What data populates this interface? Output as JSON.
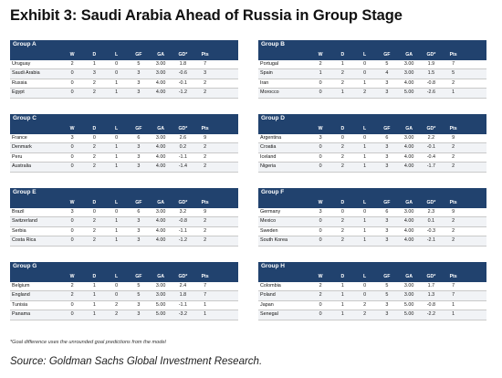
{
  "title": "Exhibit 3:  Saudi Arabia Ahead of Russia in Group Stage",
  "columns": [
    "W",
    "D",
    "L",
    "GF",
    "GA",
    "GD*",
    "Pts"
  ],
  "groups": [
    {
      "name": "Group A",
      "rows": [
        {
          "team": "Uruguay",
          "W": "2",
          "D": "1",
          "L": "0",
          "GF": "5",
          "GA": "3.00",
          "GD": "1.8",
          "Pts": "7"
        },
        {
          "team": "Saudi Arabia",
          "W": "0",
          "D": "3",
          "L": "0",
          "GF": "3",
          "GA": "3.00",
          "GD": "-0.6",
          "Pts": "3"
        },
        {
          "team": "Russia",
          "W": "0",
          "D": "2",
          "L": "1",
          "GF": "3",
          "GA": "4.00",
          "GD": "-0.1",
          "Pts": "2"
        },
        {
          "team": "Egypt",
          "W": "0",
          "D": "2",
          "L": "1",
          "GF": "3",
          "GA": "4.00",
          "GD": "-1.2",
          "Pts": "2"
        }
      ]
    },
    {
      "name": "Group B",
      "rows": [
        {
          "team": "Portugal",
          "W": "2",
          "D": "1",
          "L": "0",
          "GF": "5",
          "GA": "3.00",
          "GD": "1.9",
          "Pts": "7"
        },
        {
          "team": "Spain",
          "W": "1",
          "D": "2",
          "L": "0",
          "GF": "4",
          "GA": "3.00",
          "GD": "1.5",
          "Pts": "5"
        },
        {
          "team": "Iran",
          "W": "0",
          "D": "2",
          "L": "1",
          "GF": "3",
          "GA": "4.00",
          "GD": "-0.8",
          "Pts": "2"
        },
        {
          "team": "Morocco",
          "W": "0",
          "D": "1",
          "L": "2",
          "GF": "3",
          "GA": "5.00",
          "GD": "-2.6",
          "Pts": "1"
        }
      ]
    },
    {
      "name": "Group C",
      "rows": [
        {
          "team": "France",
          "W": "3",
          "D": "0",
          "L": "0",
          "GF": "6",
          "GA": "3.00",
          "GD": "2.6",
          "Pts": "9"
        },
        {
          "team": "Denmark",
          "W": "0",
          "D": "2",
          "L": "1",
          "GF": "3",
          "GA": "4.00",
          "GD": "0.2",
          "Pts": "2"
        },
        {
          "team": "Peru",
          "W": "0",
          "D": "2",
          "L": "1",
          "GF": "3",
          "GA": "4.00",
          "GD": "-1.1",
          "Pts": "2"
        },
        {
          "team": "Australia",
          "W": "0",
          "D": "2",
          "L": "1",
          "GF": "3",
          "GA": "4.00",
          "GD": "-1.4",
          "Pts": "2"
        }
      ]
    },
    {
      "name": "Group D",
      "rows": [
        {
          "team": "Argentina",
          "W": "3",
          "D": "0",
          "L": "0",
          "GF": "6",
          "GA": "3.00",
          "GD": "2.2",
          "Pts": "9"
        },
        {
          "team": "Croatia",
          "W": "0",
          "D": "2",
          "L": "1",
          "GF": "3",
          "GA": "4.00",
          "GD": "-0.1",
          "Pts": "2"
        },
        {
          "team": "Iceland",
          "W": "0",
          "D": "2",
          "L": "1",
          "GF": "3",
          "GA": "4.00",
          "GD": "-0.4",
          "Pts": "2"
        },
        {
          "team": "Nigeria",
          "W": "0",
          "D": "2",
          "L": "1",
          "GF": "3",
          "GA": "4.00",
          "GD": "-1.7",
          "Pts": "2"
        }
      ]
    },
    {
      "name": "Group E",
      "rows": [
        {
          "team": "Brazil",
          "W": "3",
          "D": "0",
          "L": "0",
          "GF": "6",
          "GA": "3.00",
          "GD": "3.2",
          "Pts": "9"
        },
        {
          "team": "Switzerland",
          "W": "0",
          "D": "2",
          "L": "1",
          "GF": "3",
          "GA": "4.00",
          "GD": "-0.8",
          "Pts": "2"
        },
        {
          "team": "Serbia",
          "W": "0",
          "D": "2",
          "L": "1",
          "GF": "3",
          "GA": "4.00",
          "GD": "-1.1",
          "Pts": "2"
        },
        {
          "team": "Costa Rica",
          "W": "0",
          "D": "2",
          "L": "1",
          "GF": "3",
          "GA": "4.00",
          "GD": "-1.2",
          "Pts": "2"
        }
      ]
    },
    {
      "name": "Group F",
      "rows": [
        {
          "team": "Germany",
          "W": "3",
          "D": "0",
          "L": "0",
          "GF": "6",
          "GA": "3.00",
          "GD": "2.3",
          "Pts": "9"
        },
        {
          "team": "Mexico",
          "W": "0",
          "D": "2",
          "L": "1",
          "GF": "3",
          "GA": "4.00",
          "GD": "0.1",
          "Pts": "2"
        },
        {
          "team": "Sweden",
          "W": "0",
          "D": "2",
          "L": "1",
          "GF": "3",
          "GA": "4.00",
          "GD": "-0.3",
          "Pts": "2"
        },
        {
          "team": "South Korea",
          "W": "0",
          "D": "2",
          "L": "1",
          "GF": "3",
          "GA": "4.00",
          "GD": "-2.1",
          "Pts": "2"
        }
      ]
    },
    {
      "name": "Group G",
      "rows": [
        {
          "team": "Belgium",
          "W": "2",
          "D": "1",
          "L": "0",
          "GF": "5",
          "GA": "3.00",
          "GD": "2.4",
          "Pts": "7"
        },
        {
          "team": "England",
          "W": "2",
          "D": "1",
          "L": "0",
          "GF": "5",
          "GA": "3.00",
          "GD": "1.8",
          "Pts": "7"
        },
        {
          "team": "Tunisia",
          "W": "0",
          "D": "1",
          "L": "2",
          "GF": "3",
          "GA": "5.00",
          "GD": "-1.1",
          "Pts": "1"
        },
        {
          "team": "Panama",
          "W": "0",
          "D": "1",
          "L": "2",
          "GF": "3",
          "GA": "5.00",
          "GD": "-3.2",
          "Pts": "1"
        }
      ]
    },
    {
      "name": "Group H",
      "rows": [
        {
          "team": "Colombia",
          "W": "2",
          "D": "1",
          "L": "0",
          "GF": "5",
          "GA": "3.00",
          "GD": "1.7",
          "Pts": "7"
        },
        {
          "team": "Poland",
          "W": "2",
          "D": "1",
          "L": "0",
          "GF": "5",
          "GA": "3.00",
          "GD": "1.3",
          "Pts": "7"
        },
        {
          "team": "Japan",
          "W": "0",
          "D": "1",
          "L": "2",
          "GF": "3",
          "GA": "5.00",
          "GD": "-0.8",
          "Pts": "1"
        },
        {
          "team": "Senegal",
          "W": "0",
          "D": "1",
          "L": "2",
          "GF": "3",
          "GA": "5.00",
          "GD": "-2.2",
          "Pts": "1"
        }
      ]
    }
  ],
  "footnote": "*Goal difference uses the unrounded goal predictions from the model",
  "source": "Source: Goldman Sachs Global Investment Research."
}
